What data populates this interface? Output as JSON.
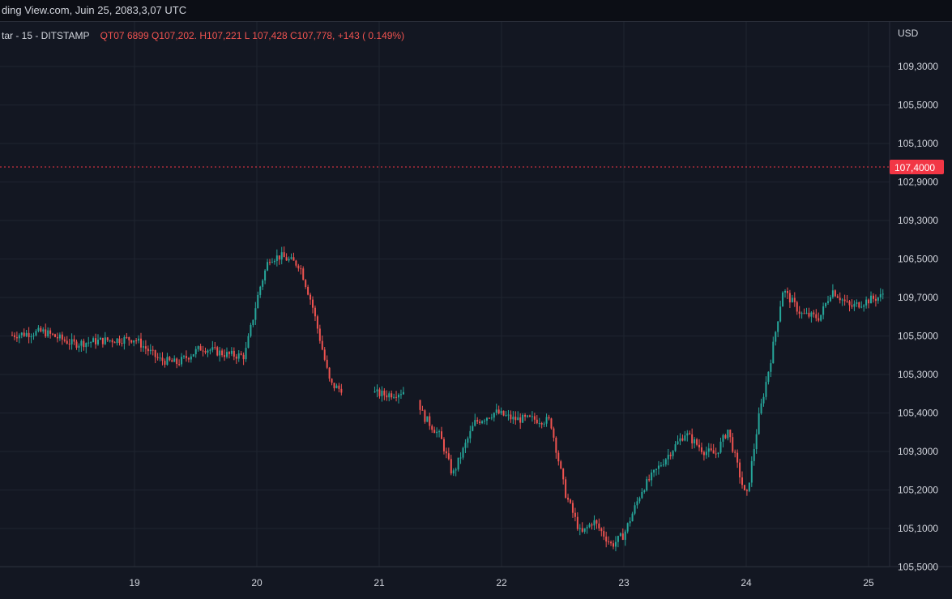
{
  "header": {
    "source_line": "ding View.com, Juin 25, 2083,3,07 UTC"
  },
  "legend": {
    "symbol": "tar - 15 - DITSTAMP",
    "ohlc": "QT07 6899  Q107,202. H107,221  L 107,428  C107,778, +143 ( 0.149%)"
  },
  "price_axis": {
    "currency": "USD",
    "labels": [
      "109,3000",
      "105,5000",
      "105,1000",
      "102,9000",
      "109,3000",
      "106,5000",
      "109,7000",
      "105,5000",
      "105,3000",
      "105,4000",
      "109,3000",
      "105,2000",
      "105,1000",
      "105,5000"
    ]
  },
  "current_price": {
    "label": "107,4000",
    "color": "#f23645"
  },
  "colors": {
    "up": "#26a69a",
    "down": "#ef5350",
    "grid": "#1f2430",
    "background": "#131722",
    "text": "#d1d4dc"
  },
  "chart_data": {
    "type": "candlestick",
    "x_ticks": [
      "19",
      "20",
      "21",
      "22",
      "23",
      "24",
      "25"
    ],
    "grid": true,
    "y_axis_position": "right",
    "path_levels": [
      [
        0,
        6.1
      ],
      [
        0.25,
        6.2
      ],
      [
        0.5,
        5.85
      ],
      [
        0.75,
        5.95
      ],
      [
        1.0,
        6.0
      ],
      [
        1.2,
        5.4
      ],
      [
        1.35,
        5.3
      ],
      [
        1.55,
        5.75
      ],
      [
        1.75,
        5.55
      ],
      [
        1.9,
        5.5
      ],
      [
        2.02,
        7.4
      ],
      [
        2.1,
        8.3
      ],
      [
        2.2,
        8.35
      ],
      [
        2.35,
        8.1
      ],
      [
        2.45,
        7.0
      ],
      [
        2.6,
        4.7
      ],
      [
        2.68,
        4.55
      ],
      [
        2.8,
        4.85
      ],
      [
        2.95,
        4.45
      ],
      [
        3.05,
        4.4
      ],
      [
        3.15,
        4.45
      ],
      [
        3.25,
        4.55
      ],
      [
        3.3,
        4.4
      ],
      [
        3.36,
        3.8
      ],
      [
        3.5,
        3.2
      ],
      [
        3.6,
        2.1
      ],
      [
        3.78,
        3.6
      ],
      [
        3.95,
        3.9
      ],
      [
        4.1,
        3.7
      ],
      [
        4.25,
        3.7
      ],
      [
        4.4,
        3.65
      ],
      [
        4.52,
        1.6
      ],
      [
        4.65,
        0.4
      ],
      [
        4.75,
        0.8
      ],
      [
        4.9,
        0.1
      ],
      [
        5.0,
        0.4
      ],
      [
        5.15,
        1.7
      ],
      [
        5.3,
        2.4
      ],
      [
        5.5,
        3.3
      ],
      [
        5.65,
        2.8
      ],
      [
        5.75,
        2.7
      ],
      [
        5.85,
        3.4
      ],
      [
        6.0,
        1.4
      ],
      [
        6.1,
        3.7
      ],
      [
        6.2,
        5.4
      ],
      [
        6.3,
        7.4
      ],
      [
        6.45,
        6.7
      ],
      [
        6.6,
        6.6
      ],
      [
        6.7,
        7.4
      ],
      [
        6.85,
        6.9
      ],
      [
        7.0,
        7.1
      ],
      [
        7.1,
        7.2
      ],
      [
        7.2,
        7.7
      ],
      [
        7.35,
        7.6
      ],
      [
        7.5,
        8.0
      ],
      [
        7.65,
        8.2
      ],
      [
        7.8,
        8.6
      ],
      [
        7.9,
        8.8
      ],
      [
        8.0,
        9.2
      ],
      [
        8.1,
        9.5
      ],
      [
        8.15,
        9.9
      ],
      [
        8.25,
        9.6
      ]
    ],
    "gaps": [
      [
        2.7,
        2.95
      ],
      [
        3.2,
        3.32
      ]
    ]
  }
}
